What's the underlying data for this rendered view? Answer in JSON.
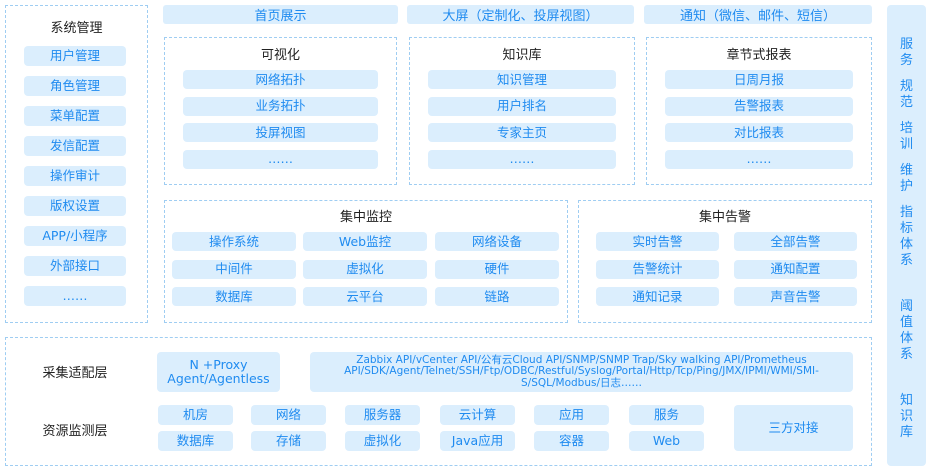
{
  "system": {
    "title": "系统管理",
    "items": [
      "用户管理",
      "角色管理",
      "菜单配置",
      "发信配置",
      "操作审计",
      "版权设置",
      "APP/小程序",
      "外部接口",
      "……"
    ]
  },
  "top_bars": [
    "首页展示",
    "大屏（定制化、投屏视图）",
    "通知（微信、邮件、短信）"
  ],
  "panels": [
    {
      "title": "可视化",
      "items": [
        "网络拓扑",
        "业务拓扑",
        "投屏视图",
        "……"
      ]
    },
    {
      "title": "知识库",
      "items": [
        "知识管理",
        "用户排名",
        "专家主页",
        "……"
      ]
    },
    {
      "title": "章节式报表",
      "items": [
        "日周月报",
        "告警报表",
        "对比报表",
        "……"
      ]
    }
  ],
  "monitor": {
    "title": "集中监控",
    "items": [
      "操作系统",
      "Web监控",
      "网络设备",
      "中间件",
      "虚拟化",
      "硬件",
      "数据库",
      "云平台",
      "链路"
    ]
  },
  "alarm": {
    "title": "集中告警",
    "items": [
      "实时告警",
      "全部告警",
      "告警统计",
      "通知配置",
      "通知记录",
      "声音告警"
    ]
  },
  "right_column": [
    "服务",
    "规范",
    "培训",
    "维护",
    "指标体系",
    "阈值体系",
    "知识库"
  ],
  "collect": {
    "label": "采集适配层",
    "proxy": "N +Proxy Agent/Agentless",
    "protocols": "Zabbix API/vCenter API/公有云Cloud API/SNMP/SNMP Trap/Sky walking API/Prometheus API/SDK/Agent/Telnet/SSH/Ftp/ODBC/Restful/Syslog/Portal/Http/Tcp/Ping/JMX/IPMI/WMI/SMI-S/SQL/Modbus/日志……"
  },
  "resource": {
    "label": "资源监测层",
    "items": [
      "机房",
      "网络",
      "服务器",
      "云计算",
      "应用",
      "服务",
      "数据库",
      "存储",
      "虚拟化",
      "Java应用",
      "容器",
      "Web"
    ],
    "third_party": "三方对接"
  }
}
